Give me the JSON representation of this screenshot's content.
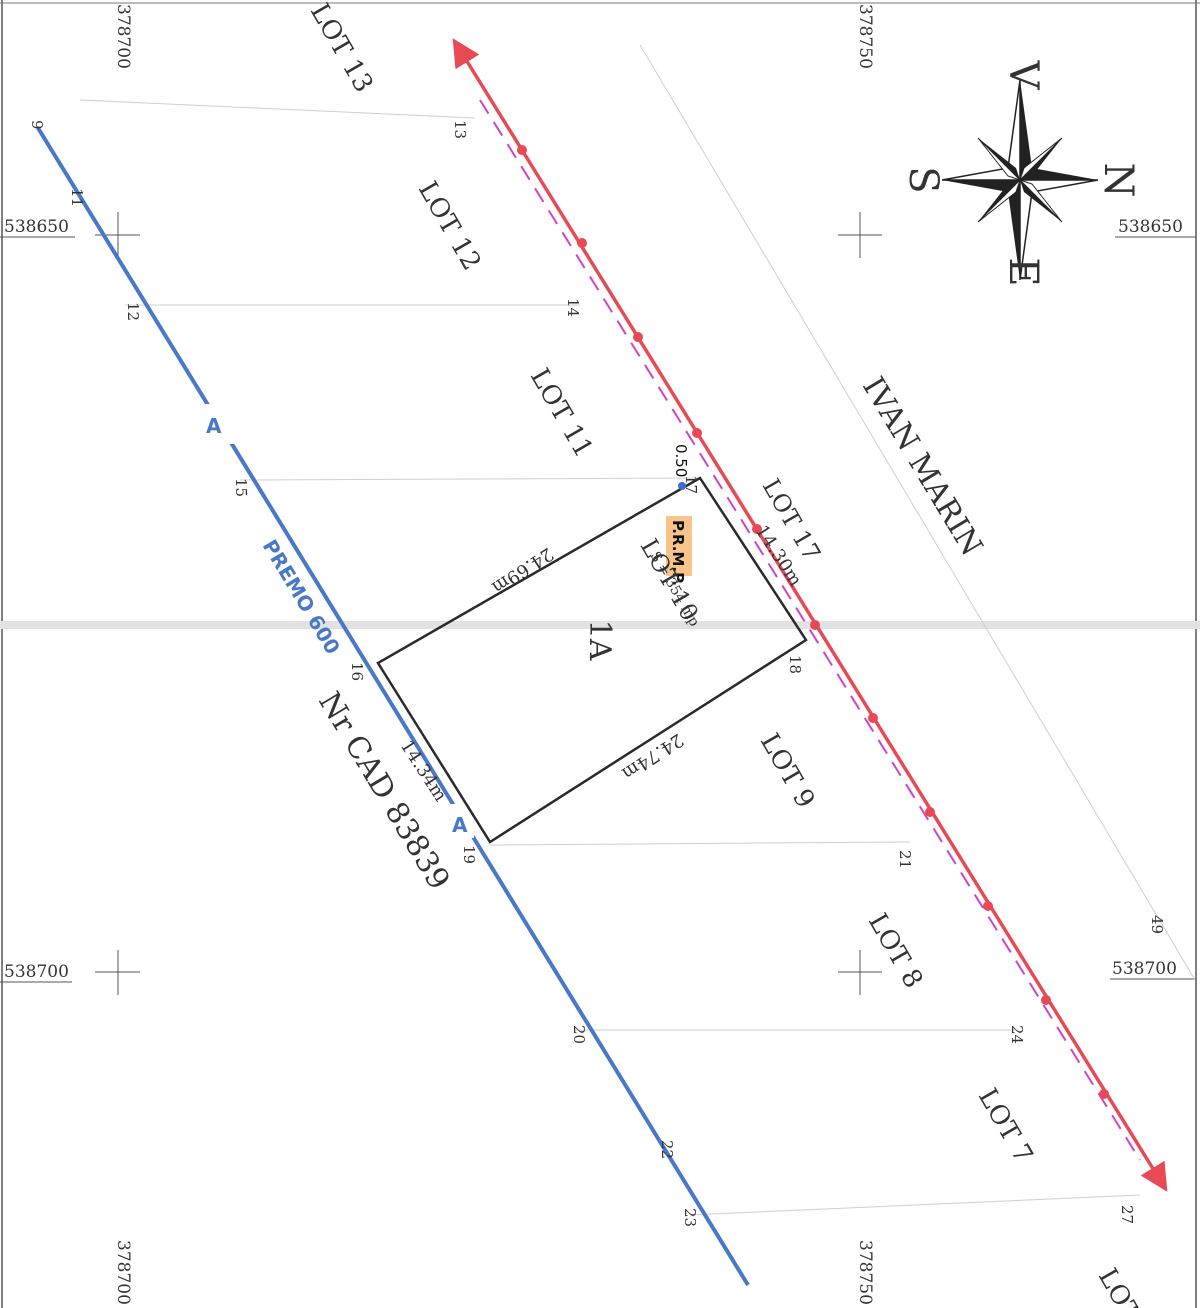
{
  "grid": {
    "x_left": "378700",
    "x_right": "378750",
    "y_top": "538650",
    "y_bottom": "538700"
  },
  "compass": {
    "north": "N",
    "south": "S",
    "east": "E",
    "west": "V",
    "icon": "compass-rose-icon"
  },
  "street": {
    "name": "IVAN MARIN"
  },
  "road": {
    "name": "PREMO 600",
    "section_a_top": "A",
    "section_a_bottom": "A"
  },
  "cadastral": {
    "label": "Nr CAD 83839"
  },
  "lots": {
    "lot13": "LOT 13",
    "lot12": "LOT 12",
    "lot11": "LOT 11",
    "lot17": "LOT 17",
    "lot10": "LOT 10",
    "lot9": "LOT 9",
    "lot8": "LOT 8",
    "lot7": "LOT 7",
    "lot_partial": "LOT"
  },
  "parcel": {
    "id": "1A",
    "area": "S = 354 mp",
    "dims": {
      "left": "24.69m",
      "right": "24.74m",
      "bottom": "14.34m",
      "top": "14.30m"
    },
    "offset": "0.50",
    "marker": "P.R.M.P."
  },
  "points": [
    "13",
    "14",
    "17",
    "18",
    "21",
    "24",
    "27",
    "11",
    "12",
    "15",
    "16",
    "19",
    "20",
    "22",
    "23",
    "9",
    "49"
  ],
  "colors": {
    "boundary_red": "#e84a55",
    "centerline_magenta": "#cc44cc",
    "road_blue": "#4a78c8",
    "marker_bg": "#f8c48c",
    "parcel_outline": "#2a2a2a"
  }
}
